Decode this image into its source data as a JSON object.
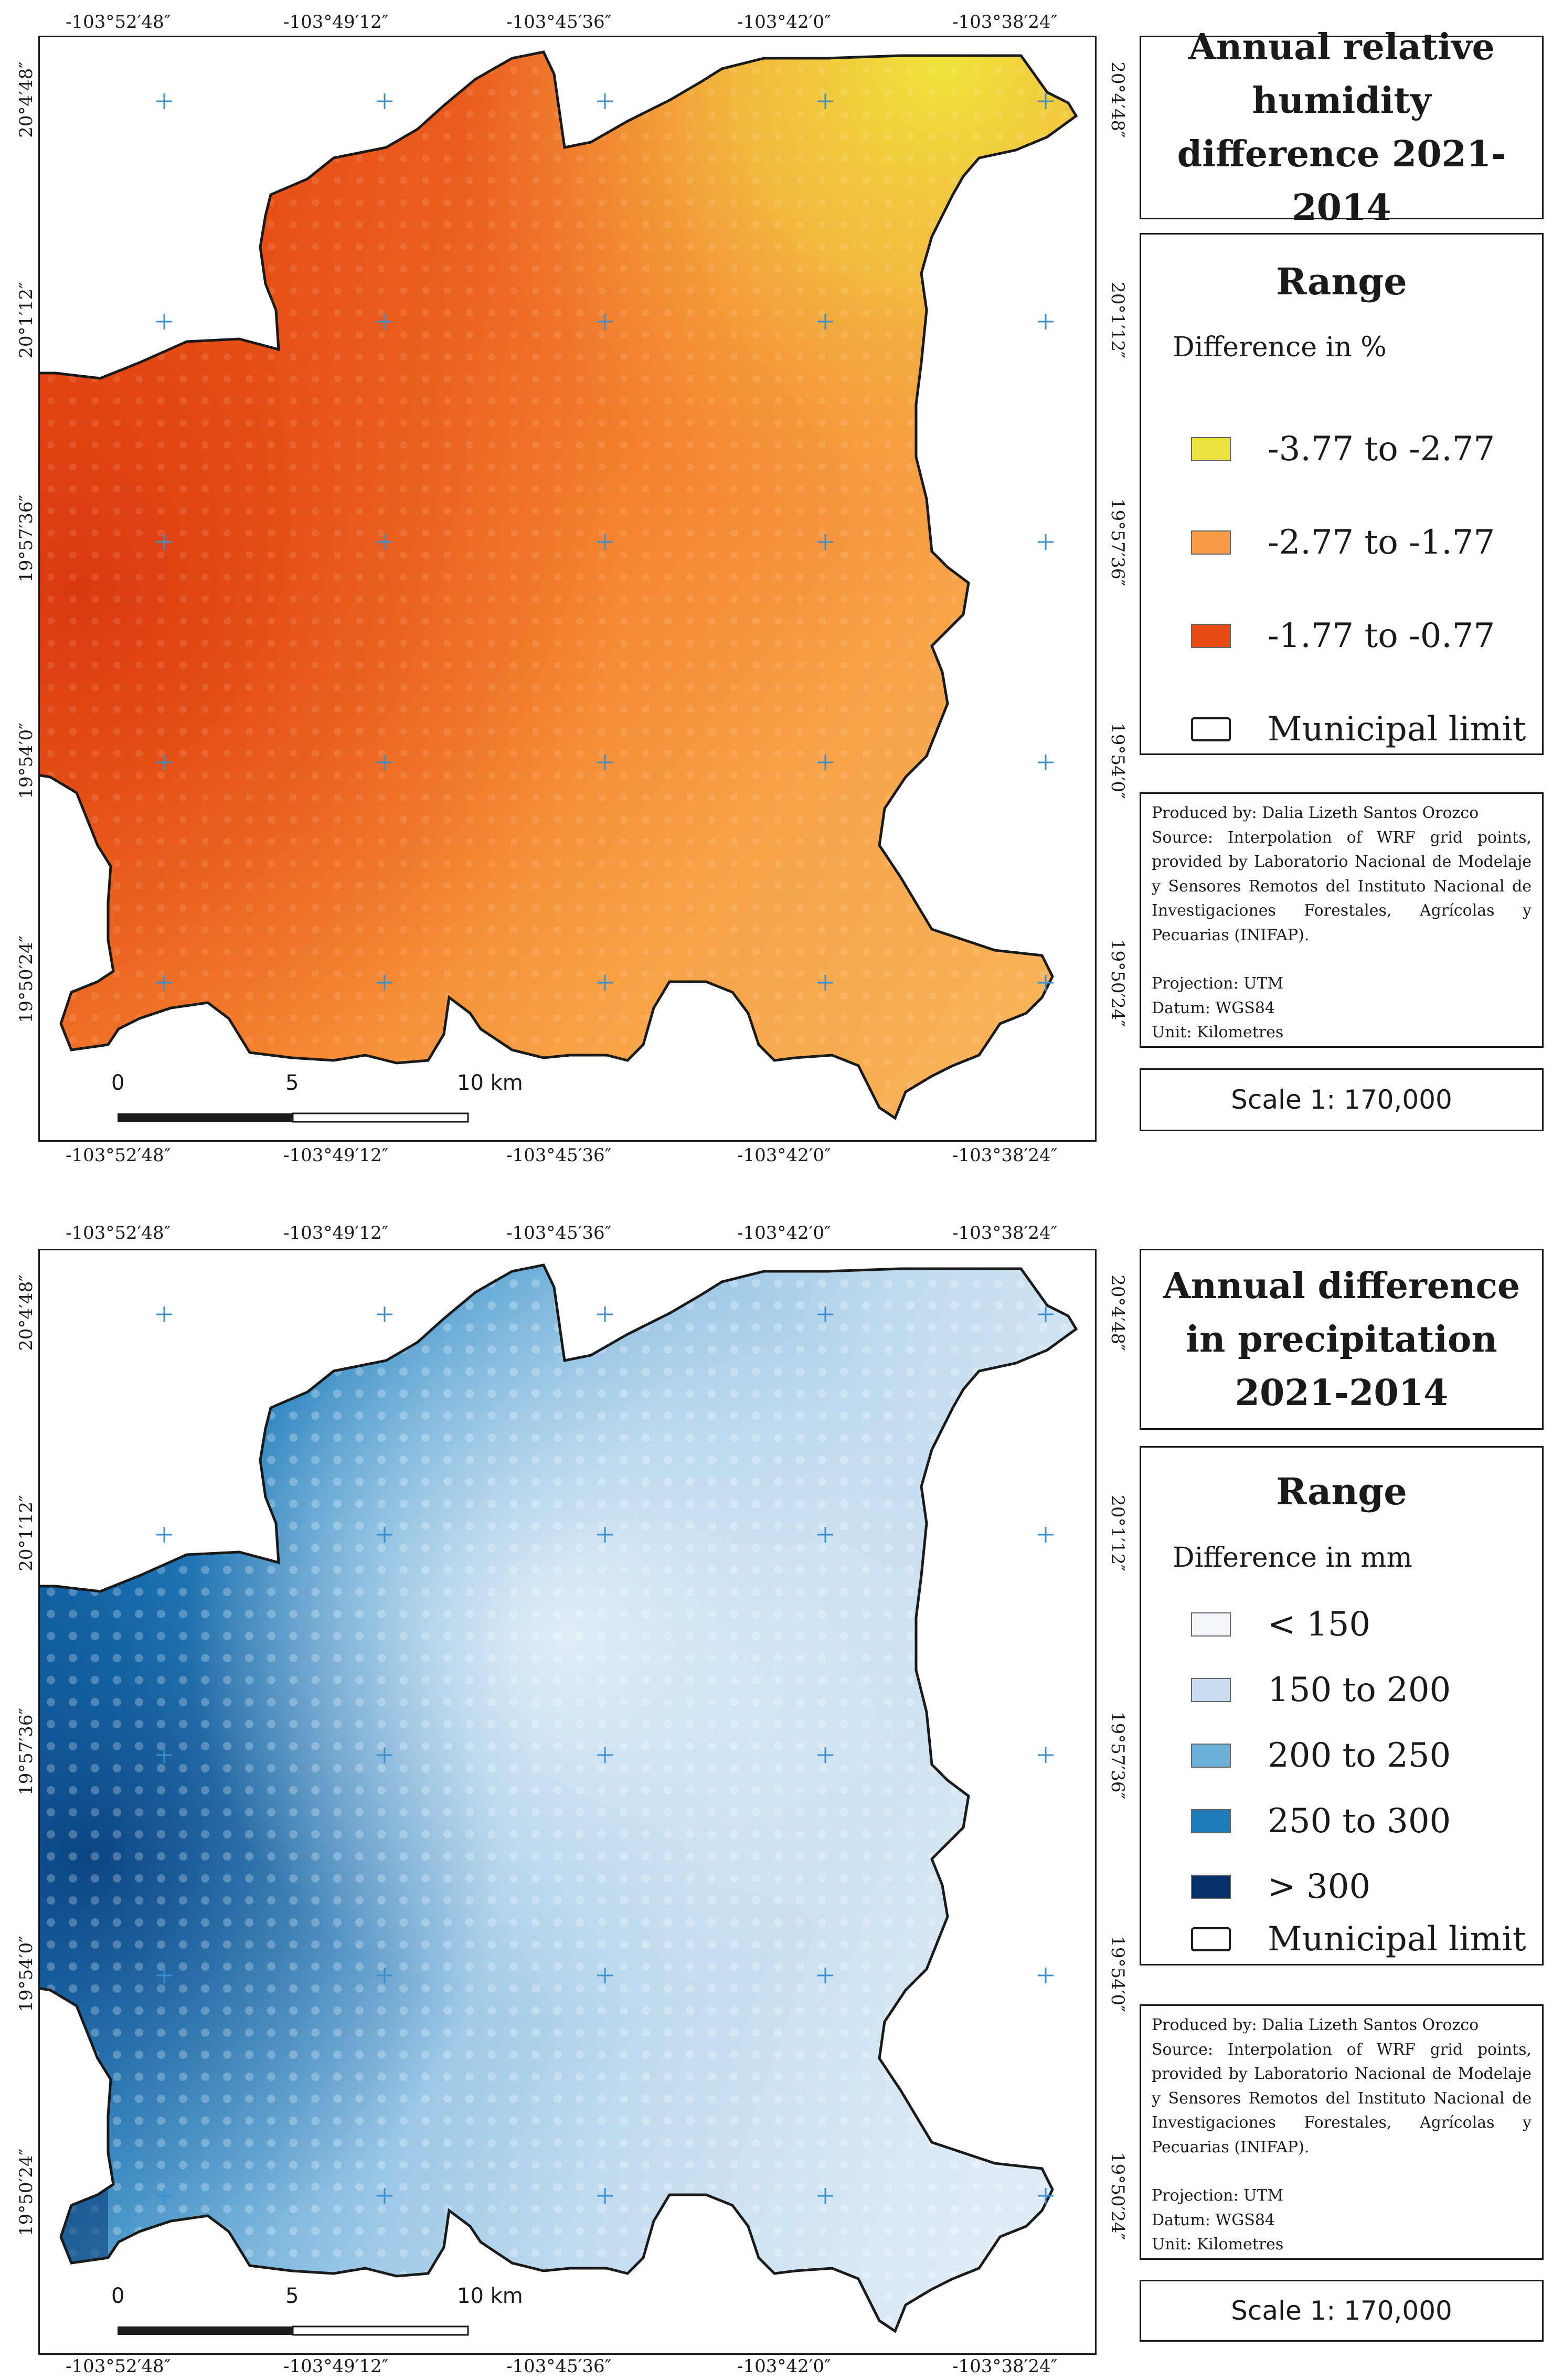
{
  "coordinates": {
    "longitudes": [
      "-103°52′48″",
      "-103°49′12″",
      "-103°45′36″",
      "-103°42′0″",
      "-103°38′24″"
    ],
    "latitudes": [
      "20°4′48″",
      "20°1′12″",
      "19°57′36″",
      "19°54′0″",
      "19°50′24″"
    ]
  },
  "humidity_map": {
    "title": "Annual relative humidity difference 2021-2014",
    "legend": {
      "heading": "Range",
      "subtitle": "Difference in %",
      "classes": [
        {
          "label": "-3.77 to -2.77",
          "color": "#ede23d"
        },
        {
          "label": "-2.77 to -1.77",
          "color": "#f79a45"
        },
        {
          "label": "-1.77 to -0.77",
          "color": "#e84c16"
        }
      ],
      "municipal_limit": "Municipal limit"
    },
    "credits": {
      "produced_by": "Produced by: Dalia Lizeth Santos Orozco",
      "source": "Source: Interpolation of WRF grid points, provided by Laboratorio Nacional de Modelaje y Sensores Remotos del Instituto Nacional de Investigaciones Forestales, Agrícolas y Pecuarias (INIFAP).",
      "projection": "Projection: UTM",
      "datum": "Datum: WGS84",
      "unit": "Unit: Kilometres"
    },
    "scale_text": "Scale 1: 170,000",
    "scalebar": {
      "zero": "0",
      "mid": "5",
      "end": "10 km"
    }
  },
  "precipitation_map": {
    "title": "Annual difference in precipitation 2021-2014",
    "legend": {
      "heading": "Range",
      "subtitle": "Difference in mm",
      "classes": [
        {
          "label": "< 150",
          "color": "#f3f7fc"
        },
        {
          "label": "150 to 200",
          "color": "#c9def0"
        },
        {
          "label": "200 to 250",
          "color": "#6aafd8"
        },
        {
          "label": "250 to 300",
          "color": "#1f7cba"
        },
        {
          "label": "> 300",
          "color": "#08306b"
        }
      ],
      "municipal_limit": "Municipal limit"
    },
    "credits": {
      "produced_by": "Produced by: Dalia Lizeth Santos Orozco",
      "source": "Source: Interpolation of WRF grid points, provided by Laboratorio Nacional de Modelaje y Sensores Remotos del Instituto Nacional de Investigaciones Forestales, Agrícolas y Pecuarias (INIFAP).",
      "projection": "Projection: UTM",
      "datum": "Datum: WGS84",
      "unit": "Unit: Kilometres"
    },
    "scale_text": "Scale 1: 170,000",
    "scalebar": {
      "zero": "0",
      "mid": "5",
      "end": "10 km"
    }
  }
}
